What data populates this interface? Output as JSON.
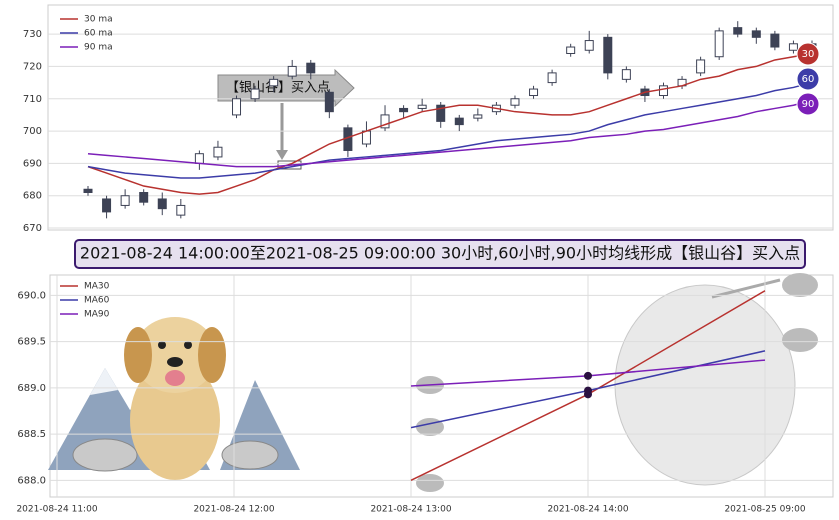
{
  "chart_data": [
    {
      "type": "candlestick",
      "open": [
        682,
        679,
        677,
        681,
        679,
        674,
        690,
        692,
        705,
        710,
        714,
        717,
        721,
        712,
        701,
        696,
        701,
        707,
        707,
        708,
        704,
        704,
        706,
        708,
        711,
        715,
        724,
        725,
        729,
        716,
        713,
        711,
        714,
        718,
        723,
        732,
        731,
        730,
        725,
        727
      ],
      "high": [
        683,
        680,
        682,
        682,
        681,
        679,
        694,
        697,
        711,
        714,
        717,
        722,
        722,
        713,
        702,
        703,
        708,
        708,
        710,
        709,
        705,
        707,
        709,
        711,
        714,
        719,
        727,
        731,
        730,
        720,
        714,
        715,
        717,
        723,
        732,
        734,
        732,
        731,
        728,
        728
      ],
      "low": [
        680,
        673,
        676,
        677,
        674,
        673,
        688,
        691,
        704,
        709,
        712,
        716,
        716,
        704,
        692,
        695,
        700,
        704,
        706,
        701,
        700,
        703,
        705,
        707,
        710,
        714,
        723,
        724,
        716,
        715,
        709,
        710,
        713,
        717,
        722,
        729,
        727,
        725,
        724,
        724
      ],
      "close": [
        681,
        675,
        680,
        678,
        676,
        677,
        693,
        695,
        710,
        713,
        716,
        720,
        718,
        706,
        694,
        700,
        705,
        706,
        708,
        703,
        702,
        705,
        708,
        710,
        713,
        718,
        726,
        728,
        718,
        719,
        711,
        714,
        716,
        722,
        731,
        730,
        729,
        726,
        727,
        725
      ],
      "series": [
        {
          "name": "30 ma",
          "badge": "30",
          "color": "#b8322f",
          "values": [
            689,
            687,
            685,
            683,
            682,
            681,
            680.5,
            681,
            683,
            685,
            688,
            690,
            693,
            696,
            698,
            700,
            702,
            704,
            706,
            707,
            708,
            708,
            707,
            706,
            705.5,
            705,
            705,
            706,
            708,
            710,
            712,
            713,
            714,
            716,
            717,
            719,
            720,
            722,
            723,
            724
          ]
        },
        {
          "name": "60 ma",
          "badge": "60",
          "color": "#3c3ca8",
          "values": [
            689,
            688,
            687,
            686.5,
            686,
            685.5,
            685.5,
            686,
            686.5,
            687,
            688,
            689,
            690,
            691,
            691.5,
            692,
            692.5,
            693,
            693.5,
            694,
            695,
            696,
            697,
            697.5,
            698,
            698.5,
            699,
            700,
            702,
            703.5,
            705,
            706,
            707,
            708,
            709,
            710,
            711,
            712.5,
            713.5,
            715
          ]
        },
        {
          "name": "90 ma",
          "badge": "90",
          "color": "#7b1fb8",
          "values": [
            693,
            692.5,
            692,
            691.5,
            691,
            690.5,
            690,
            689.5,
            689,
            689,
            689,
            689.5,
            690,
            690.5,
            691,
            691.5,
            692,
            692.5,
            693,
            693.5,
            694,
            694.5,
            695,
            695.5,
            696,
            696.5,
            697,
            698,
            698.5,
            699,
            700,
            700.5,
            701.5,
            702.5,
            703.5,
            704.5,
            706,
            707,
            708,
            709.5
          ]
        }
      ],
      "ylim": [
        669.4,
        739
      ],
      "yticks": [
        670,
        680,
        690,
        700,
        710,
        720,
        730
      ],
      "annotation": "【银山谷】买入点",
      "grid": true,
      "legend": "upper left"
    },
    {
      "type": "line",
      "title": "2021-08-24 14:00:00至2021-08-25 09:00:00 30小时,60小时,90小时均线形成【银山谷】买入点",
      "categories": [
        "2021-08-24 11:00",
        "2021-08-24 12:00",
        "2021-08-24 13:00",
        "2021-08-24 14:00",
        "2021-08-25 09:00"
      ],
      "series": [
        {
          "name": "MA30",
          "color": "#b8322f",
          "values": [
            null,
            null,
            688.0,
            688.93,
            690.05
          ]
        },
        {
          "name": "MA60",
          "color": "#3c3ca8",
          "values": [
            null,
            null,
            688.57,
            688.97,
            689.4
          ]
        },
        {
          "name": "MA90",
          "color": "#7b1fb8",
          "values": [
            null,
            null,
            689.02,
            689.13,
            689.3
          ]
        }
      ],
      "ylim": [
        687.82,
        690.22
      ],
      "yticks": [
        {
          "value": 688,
          "label": "688.0"
        },
        {
          "value": 688.5,
          "label": "688.5"
        },
        {
          "value": 689,
          "label": "689.0"
        },
        {
          "value": 689.5,
          "label": "689.5"
        },
        {
          "value": 690,
          "label": "690.0"
        }
      ],
      "grid": true,
      "legend": "upper left"
    }
  ]
}
